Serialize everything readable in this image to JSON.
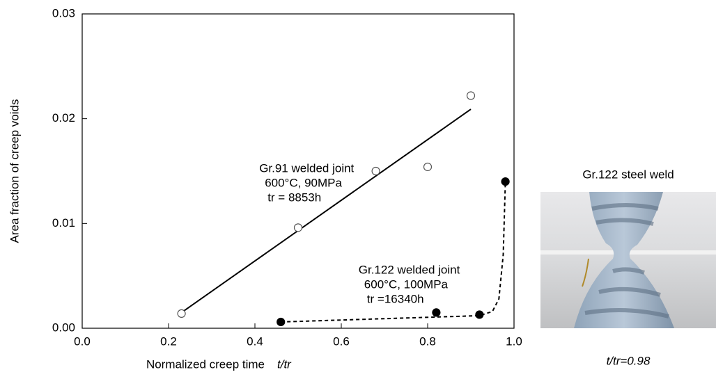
{
  "chart_data": {
    "type": "scatter",
    "xlabel": "Normalized creep time",
    "xlabel_var": "t/tr",
    "ylabel": "Area fraction of creep voids",
    "xlim": [
      0,
      1
    ],
    "ylim": [
      0,
      0.03
    ],
    "xticks": [
      {
        "value": 0,
        "label": "0.0"
      },
      {
        "value": 0.2,
        "label": "0.2"
      },
      {
        "value": 0.4,
        "label": "0.4"
      },
      {
        "value": 0.6,
        "label": "0.6"
      },
      {
        "value": 0.8,
        "label": "0.8"
      },
      {
        "value": 1,
        "label": "1.0"
      }
    ],
    "yticks": [
      {
        "value": 0,
        "label": "0.00"
      },
      {
        "value": 0.01,
        "label": "0.01"
      },
      {
        "value": 0.02,
        "label": "0.02"
      },
      {
        "value": 0.03,
        "label": "0.03"
      }
    ],
    "series": [
      {
        "marker": "open-circle",
        "color": "#000000",
        "x": [
          0.23,
          0.5,
          0.68,
          0.8,
          0.9
        ],
        "values": [
          0.0014,
          0.0096,
          0.015,
          0.0154,
          0.0222
        ]
      },
      {
        "marker": "filled-circle",
        "color": "#000000",
        "x": [
          0.46,
          0.82,
          0.92,
          0.98
        ],
        "values": [
          0.0006,
          0.0015,
          0.0013,
          0.014
        ]
      },
      {
        "line_style": "solid",
        "color": "#000000",
        "x": [
          0.23,
          0.9
        ],
        "values": [
          0.0015,
          0.0209
        ]
      },
      {
        "line_style": "dashed",
        "color": "#000000",
        "x": [
          0.46,
          0.92,
          0.95,
          0.965,
          0.975,
          0.98
        ],
        "values": [
          0.0006,
          0.0012,
          0.0016,
          0.0028,
          0.007,
          0.014
        ]
      }
    ],
    "annotations": [
      {
        "lines": [
          "Gr.91 welded joint",
          "600°C, 90MPa",
          "tr = 8853h"
        ],
        "x": 0.41,
        "y": 0.0152
      },
      {
        "lines": [
          "Gr.122 welded joint",
          "600°C, 100MPa",
          "tr =16340h"
        ],
        "x": 0.64,
        "y": 0.0055
      }
    ]
  },
  "photo": {
    "title": "Gr.122 steel weld",
    "caption": "t/tr=0.98"
  }
}
